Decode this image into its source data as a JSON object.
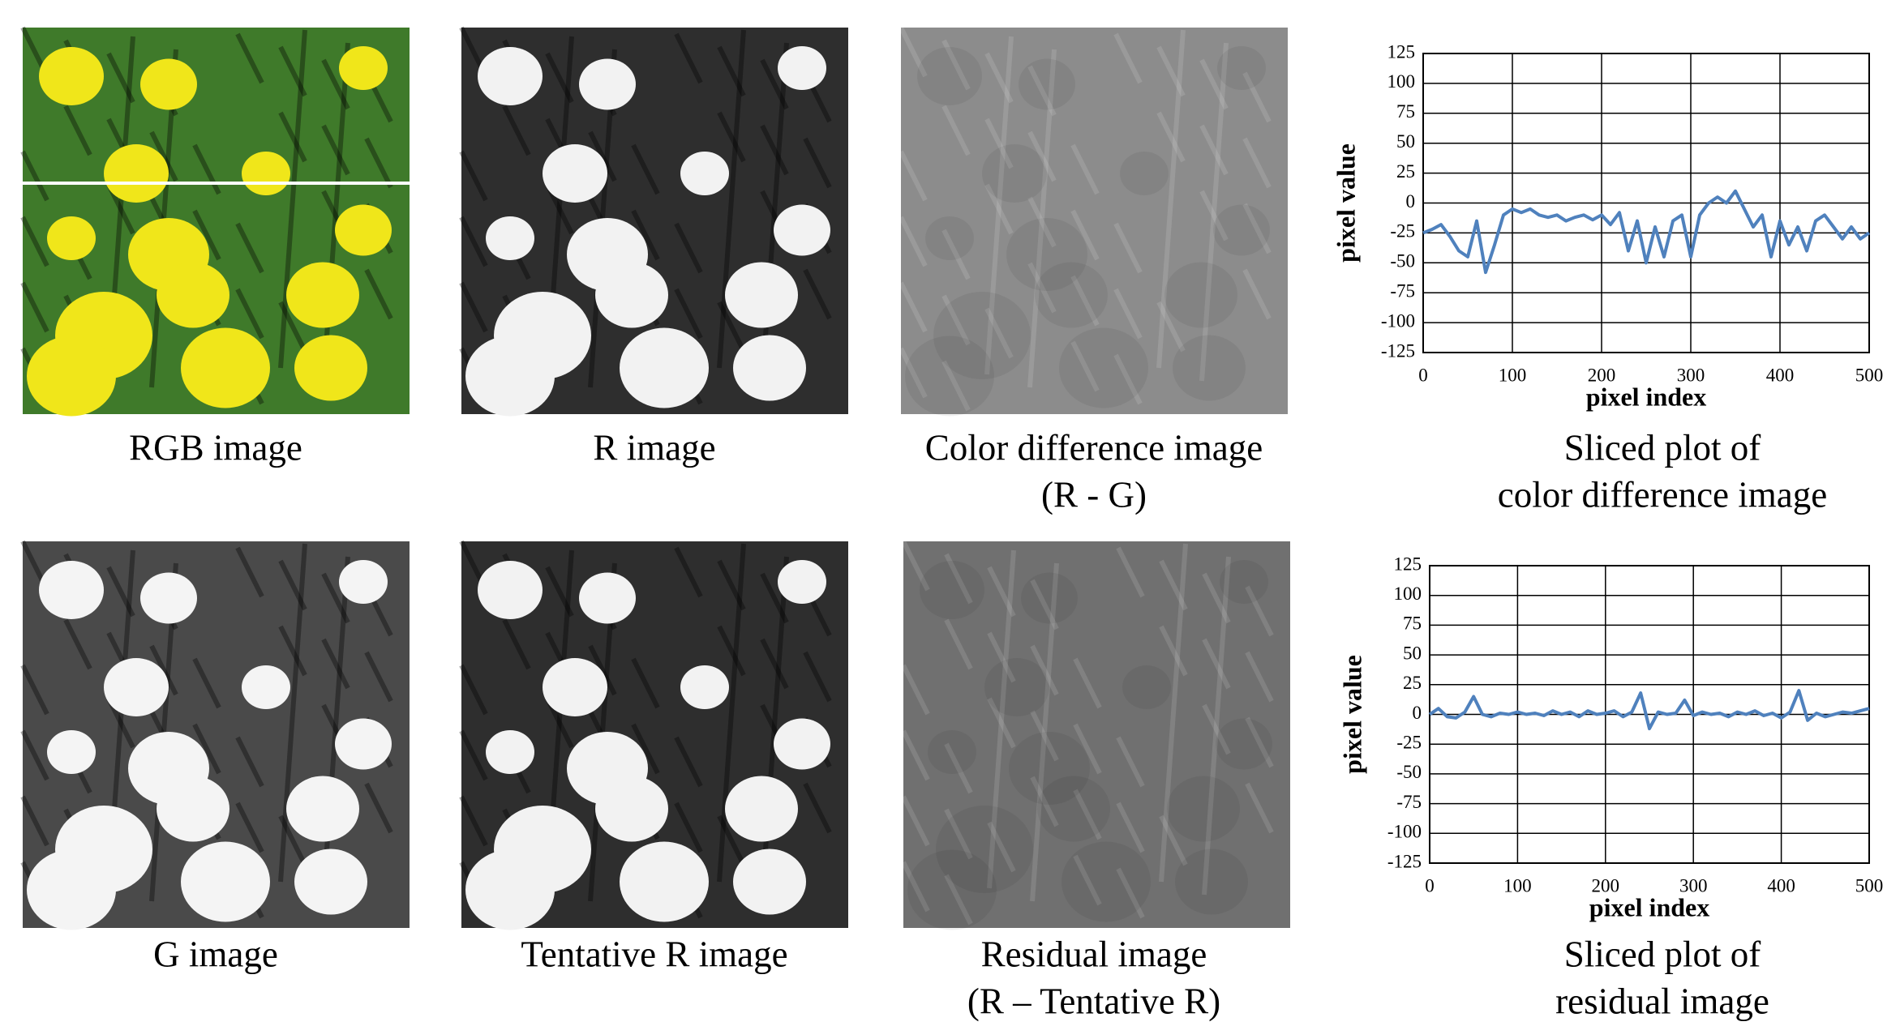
{
  "panels": [
    {
      "caption": [
        "RGB image"
      ]
    },
    {
      "caption": [
        "R image"
      ]
    },
    {
      "caption": [
        "Color difference image",
        "(R - G)"
      ]
    },
    {
      "caption": [
        "Sliced plot of",
        "color difference image"
      ]
    },
    {
      "caption": [
        "G image"
      ]
    },
    {
      "caption": [
        "Tentative R image"
      ]
    },
    {
      "caption": [
        "Residual image",
        "(R – Tentative R)"
      ]
    },
    {
      "caption": [
        "Sliced plot of",
        "residual image"
      ]
    }
  ],
  "chart_data": [
    {
      "type": "line",
      "color": "#4f81bd",
      "xlabel": "pixel index",
      "ylabel": "pixel value",
      "x": [
        0,
        10,
        20,
        30,
        40,
        50,
        60,
        70,
        80,
        90,
        100,
        110,
        120,
        130,
        140,
        150,
        160,
        170,
        180,
        190,
        200,
        210,
        220,
        230,
        240,
        250,
        260,
        270,
        280,
        290,
        300,
        310,
        320,
        330,
        340,
        350,
        360,
        370,
        380,
        390,
        400,
        410,
        420,
        430,
        440,
        450,
        460,
        470,
        480,
        490,
        500
      ],
      "values": [
        -25,
        -22,
        -18,
        -28,
        -40,
        -45,
        -15,
        -58,
        -35,
        -10,
        -5,
        -8,
        -5,
        -10,
        -12,
        -10,
        -15,
        -12,
        -10,
        -14,
        -10,
        -18,
        -8,
        -40,
        -15,
        -50,
        -20,
        -45,
        -15,
        -10,
        -45,
        -10,
        0,
        5,
        0,
        10,
        -5,
        -20,
        -10,
        -45,
        -15,
        -35,
        -20,
        -40,
        -15,
        -10,
        -20,
        -30,
        -20,
        -30,
        -25
      ],
      "xlim": [
        0,
        500
      ],
      "ylim": [
        -125,
        125
      ],
      "xticks": [
        0,
        100,
        200,
        300,
        400,
        500
      ],
      "yticks": [
        -125,
        -100,
        -75,
        -50,
        -25,
        0,
        25,
        50,
        75,
        100,
        125
      ],
      "grid": true
    },
    {
      "type": "line",
      "color": "#4f81bd",
      "xlabel": "pixel index",
      "ylabel": "pixel value",
      "x": [
        0,
        10,
        20,
        30,
        40,
        50,
        60,
        70,
        80,
        90,
        100,
        110,
        120,
        130,
        140,
        150,
        160,
        170,
        180,
        190,
        200,
        210,
        220,
        230,
        240,
        250,
        260,
        270,
        280,
        290,
        300,
        310,
        320,
        330,
        340,
        350,
        360,
        370,
        380,
        390,
        400,
        410,
        420,
        430,
        440,
        450,
        460,
        470,
        480,
        490,
        500
      ],
      "values": [
        0,
        5,
        -2,
        -3,
        2,
        15,
        0,
        -2,
        1,
        0,
        2,
        0,
        1,
        -1,
        3,
        0,
        2,
        -2,
        3,
        0,
        1,
        3,
        -2,
        2,
        18,
        -12,
        2,
        0,
        1,
        12,
        -1,
        2,
        0,
        1,
        -2,
        2,
        0,
        3,
        -1,
        1,
        -3,
        2,
        20,
        -5,
        1,
        -2,
        0,
        2,
        1,
        3,
        5
      ],
      "xlim": [
        0,
        500
      ],
      "ylim": [
        -125,
        125
      ],
      "xticks": [
        0,
        100,
        200,
        300,
        400,
        500
      ],
      "yticks": [
        -125,
        -100,
        -75,
        -50,
        -25,
        0,
        25,
        50,
        75,
        100,
        125
      ],
      "grid": true
    }
  ]
}
